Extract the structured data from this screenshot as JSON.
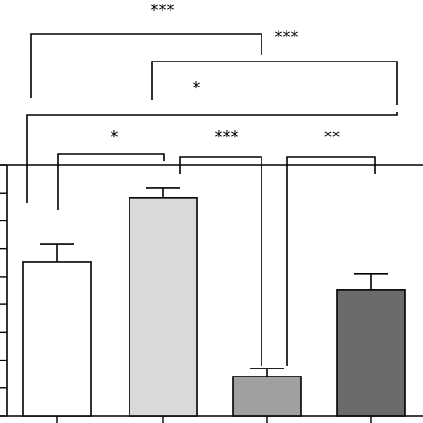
{
  "chart_data": {
    "type": "bar",
    "categories": [
      null,
      null,
      null,
      null
    ],
    "values": [
      5.51,
      7.82,
      1.41,
      4.52
    ],
    "errors": [
      0.67,
      0.35,
      0.29,
      0.58
    ],
    "colors": [
      "#ffffff",
      "#d9d9d9",
      "#a0a0a0",
      "#6b6b6b"
    ],
    "ylim": [
      0,
      9
    ],
    "yticks": [
      0,
      1,
      2,
      3,
      4,
      5,
      6,
      7,
      8,
      9
    ],
    "annotations": [
      "***",
      "***",
      "*",
      "*",
      "***",
      "**"
    ]
  }
}
